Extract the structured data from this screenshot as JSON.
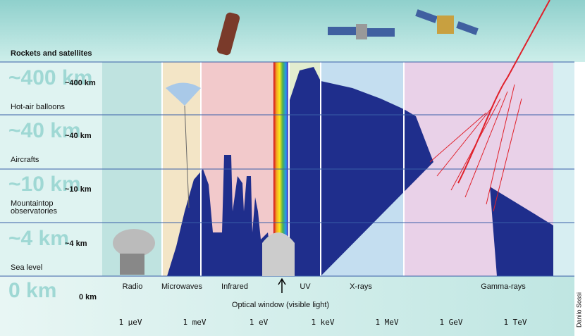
{
  "header": {
    "title": "Rockets and satellites"
  },
  "altitudes": [
    {
      "big": "~400 km",
      "small": "~400 km",
      "label": "Hot-air balloons"
    },
    {
      "big": "~40 km",
      "small": "~40 km",
      "label": "Aircrafts"
    },
    {
      "big": "~10 km",
      "small": "~10 km",
      "label": [
        "Mountaintop",
        "observatories"
      ]
    },
    {
      "big": "~4 km",
      "small": "~4 km",
      "label": "Sea level"
    },
    {
      "big": "0 km",
      "small": "0 km"
    }
  ],
  "bands": [
    "Radio",
    "Microwaves",
    "Infrared",
    "UV",
    "X-rays",
    "Gamma-rays"
  ],
  "optical_window": "Optical window (visible light)",
  "energies": [
    "1 µeV",
    "1 meV",
    "1 eV",
    "1 keV",
    "1 MeV",
    "1 GeV",
    "1 TeV"
  ],
  "credit": "Danilo Sossi"
}
